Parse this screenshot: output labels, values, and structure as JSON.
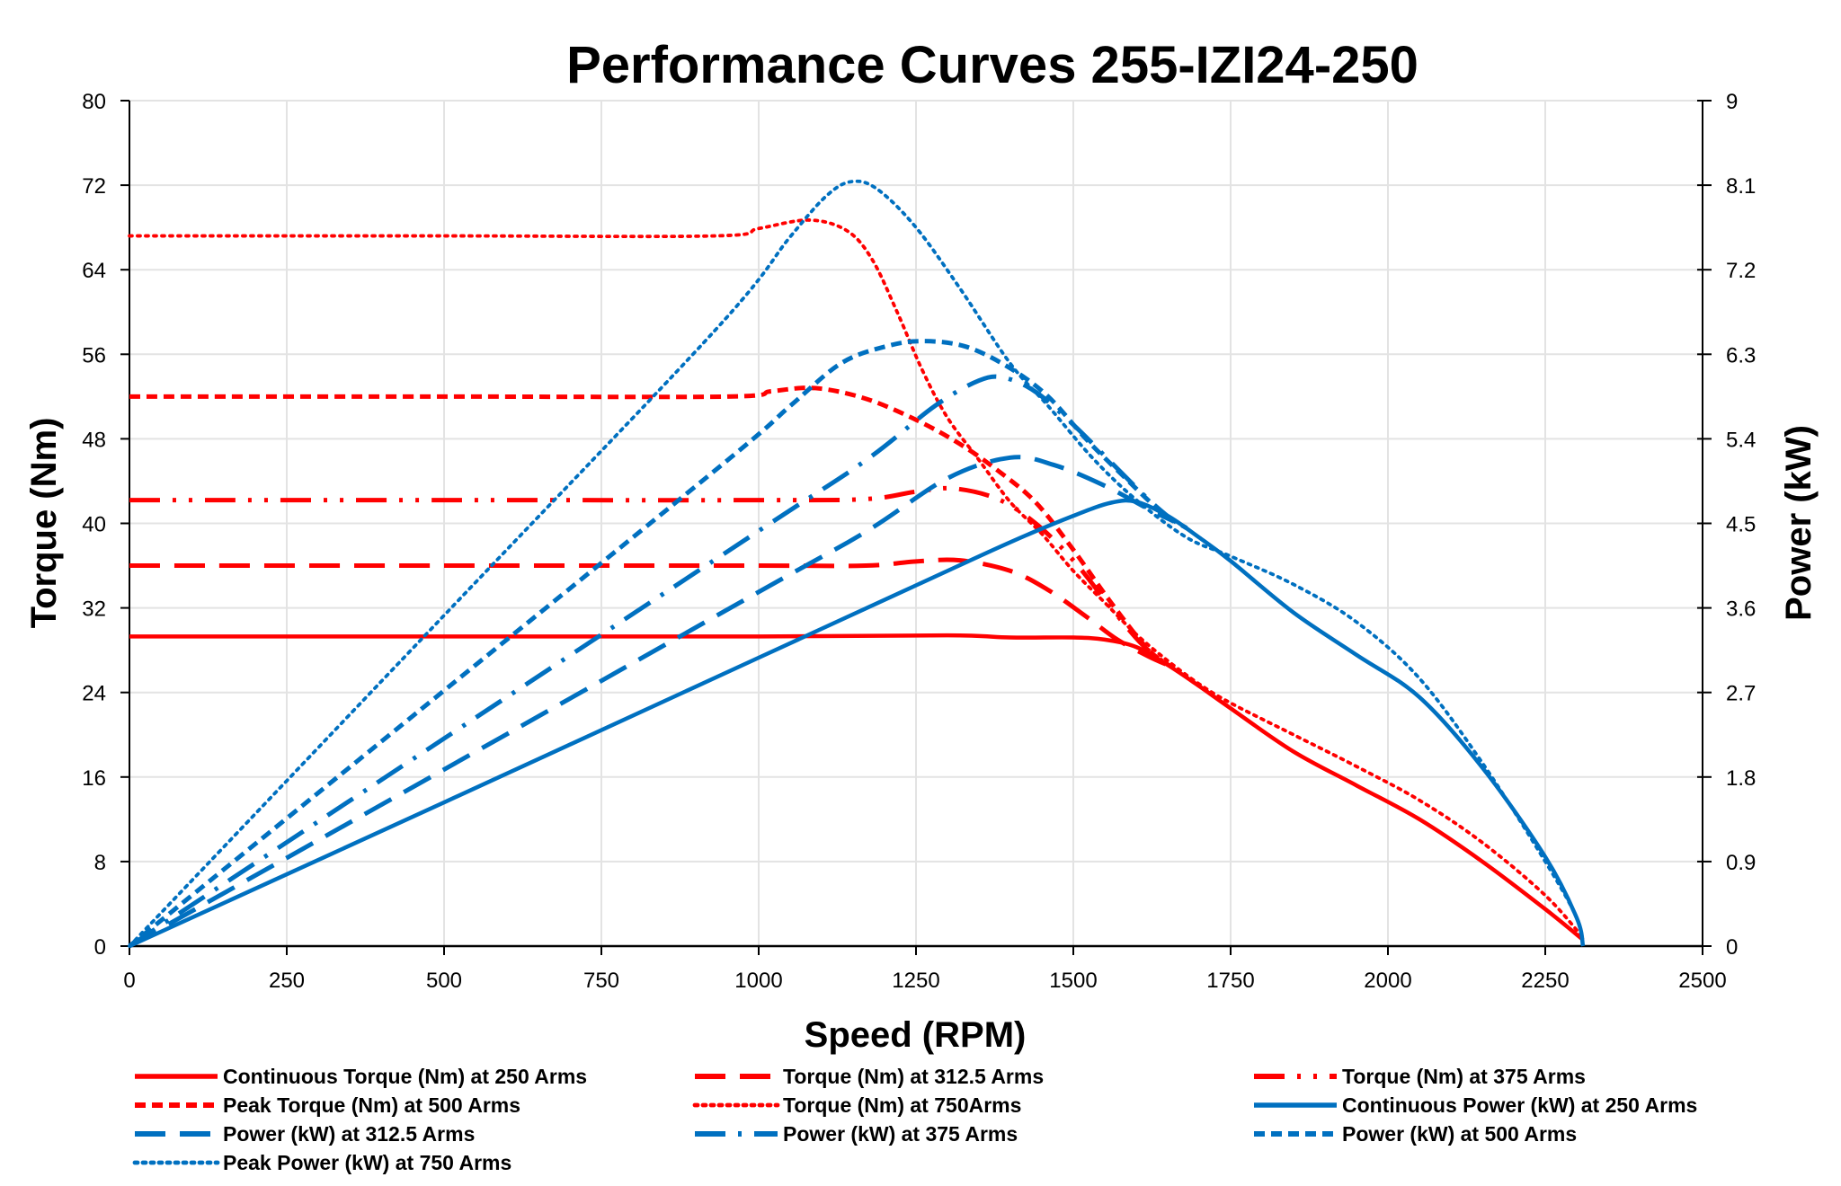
{
  "chart_data": {
    "type": "line",
    "title": "Performance Curves 255-IZI24-250",
    "xlabel": "Speed (RPM)",
    "ylabel": "Torque (Nm)",
    "y2label": "Power (kW)",
    "xlim": [
      0,
      2500
    ],
    "ylim": [
      0,
      80
    ],
    "y2lim": [
      0,
      9
    ],
    "xticks": [
      "0",
      "250",
      "500",
      "750",
      "1000",
      "1250",
      "1500",
      "1750",
      "2000",
      "2250",
      "2500"
    ],
    "yticks": [
      "0",
      "8",
      "16",
      "24",
      "32",
      "40",
      "48",
      "56",
      "64",
      "72",
      "80"
    ],
    "y2ticks": [
      "0",
      "0.9",
      "1.8",
      "2.7",
      "3.6",
      "4.5",
      "5.4",
      "6.3",
      "7.2",
      "8.1",
      "9"
    ],
    "grid": true,
    "legend_position": "bottom",
    "colors": {
      "torque": "#ff0000",
      "power": "#0070c0"
    },
    "series": [
      {
        "name": "Continuous Torque (Nm) at 250 Arms",
        "axis": "left",
        "color": "#ff0000",
        "style": "solid",
        "points": [
          [
            0,
            29.3
          ],
          [
            500,
            29.3
          ],
          [
            1000,
            29.3
          ],
          [
            1300,
            29.4
          ],
          [
            1400,
            29.2
          ],
          [
            1500,
            29.2
          ],
          [
            1550,
            29
          ],
          [
            1600,
            28.3
          ],
          [
            1650,
            26.6
          ],
          [
            1700,
            24.6
          ],
          [
            1750,
            22.5
          ],
          [
            1850,
            18.4
          ],
          [
            1950,
            15.2
          ],
          [
            2050,
            12
          ],
          [
            2150,
            8
          ],
          [
            2250,
            3.5
          ],
          [
            2310,
            0.6
          ]
        ]
      },
      {
        "name": "Torque (Nm) at 312.5 Arms",
        "axis": "left",
        "color": "#ff0000",
        "style": "longdash",
        "points": [
          [
            0,
            36
          ],
          [
            500,
            36
          ],
          [
            1000,
            36
          ],
          [
            1170,
            36
          ],
          [
            1250,
            36.4
          ],
          [
            1320,
            36.5
          ],
          [
            1400,
            35.5
          ],
          [
            1460,
            33.7
          ],
          [
            1520,
            31.2
          ],
          [
            1570,
            29
          ],
          [
            1620,
            27.4
          ],
          [
            1650,
            26.6
          ]
        ]
      },
      {
        "name": "Torque (Nm) at 375 Arms",
        "axis": "left",
        "color": "#ff0000",
        "style": "dashdotdot",
        "points": [
          [
            0,
            42.2
          ],
          [
            500,
            42.2
          ],
          [
            1000,
            42.2
          ],
          [
            1170,
            42.3
          ],
          [
            1250,
            43
          ],
          [
            1310,
            43.3
          ],
          [
            1380,
            42.3
          ],
          [
            1440,
            40
          ],
          [
            1500,
            36.5
          ],
          [
            1560,
            32
          ],
          [
            1610,
            28.5
          ],
          [
            1650,
            26.6
          ]
        ]
      },
      {
        "name": "Peak Torque (Nm) at 500 Arms",
        "axis": "left",
        "color": "#ff0000",
        "style": "shortdash",
        "points": [
          [
            0,
            52
          ],
          [
            500,
            52
          ],
          [
            950,
            52
          ],
          [
            1020,
            52.5
          ],
          [
            1090,
            52.8
          ],
          [
            1170,
            51.8
          ],
          [
            1250,
            49.8
          ],
          [
            1320,
            47.5
          ],
          [
            1380,
            45
          ],
          [
            1440,
            42
          ],
          [
            1500,
            37.5
          ],
          [
            1560,
            32.5
          ],
          [
            1620,
            28
          ],
          [
            1660,
            26.3
          ]
        ]
      },
      {
        "name": "Torque (Nm) at 750Arms",
        "axis": "left",
        "color": "#ff0000",
        "style": "dot",
        "points": [
          [
            0,
            67.2
          ],
          [
            500,
            67.2
          ],
          [
            930,
            67.2
          ],
          [
            1000,
            67.9
          ],
          [
            1080,
            68.7
          ],
          [
            1140,
            67.7
          ],
          [
            1180,
            65
          ],
          [
            1220,
            60
          ],
          [
            1260,
            54.5
          ],
          [
            1300,
            50
          ],
          [
            1350,
            46
          ],
          [
            1400,
            42
          ],
          [
            1450,
            39
          ],
          [
            1500,
            35.5
          ],
          [
            1550,
            32.5
          ],
          [
            1600,
            29.5
          ],
          [
            1650,
            27
          ],
          [
            1700,
            24.8
          ],
          [
            1750,
            23
          ],
          [
            1850,
            20
          ],
          [
            1950,
            17
          ],
          [
            2050,
            13.8
          ],
          [
            2150,
            9.8
          ],
          [
            2250,
            4.8
          ],
          [
            2310,
            0.8
          ]
        ]
      },
      {
        "name": "Continuous Power (kW) at 250 Arms",
        "axis": "right",
        "color": "#0070c0",
        "style": "solid",
        "points": [
          [
            0,
            0
          ],
          [
            500,
            1.53
          ],
          [
            1000,
            3.07
          ],
          [
            1250,
            3.84
          ],
          [
            1400,
            4.3
          ],
          [
            1500,
            4.58
          ],
          [
            1560,
            4.72
          ],
          [
            1600,
            4.73
          ],
          [
            1650,
            4.58
          ],
          [
            1700,
            4.35
          ],
          [
            1750,
            4.1
          ],
          [
            1850,
            3.55
          ],
          [
            1950,
            3.1
          ],
          [
            2050,
            2.65
          ],
          [
            2150,
            1.9
          ],
          [
            2250,
            0.95
          ],
          [
            2300,
            0.3
          ],
          [
            2310,
            0
          ]
        ]
      },
      {
        "name": "Power (kW) at 312.5 Arms",
        "axis": "right",
        "color": "#0070c0",
        "style": "longdash",
        "points": [
          [
            0,
            0
          ],
          [
            500,
            1.88
          ],
          [
            1000,
            3.77
          ],
          [
            1170,
            4.41
          ],
          [
            1300,
            4.98
          ],
          [
            1400,
            5.2
          ],
          [
            1470,
            5.12
          ],
          [
            1550,
            4.9
          ],
          [
            1620,
            4.65
          ],
          [
            1660,
            4.52
          ]
        ]
      },
      {
        "name": "Power (kW) at 375 Arms",
        "axis": "right",
        "color": "#0070c0",
        "style": "dashdot",
        "points": [
          [
            0,
            0
          ],
          [
            500,
            2.21
          ],
          [
            1000,
            4.42
          ],
          [
            1170,
            5.17
          ],
          [
            1280,
            5.75
          ],
          [
            1350,
            6.02
          ],
          [
            1390,
            6.05
          ],
          [
            1440,
            5.9
          ],
          [
            1500,
            5.55
          ],
          [
            1560,
            5.15
          ],
          [
            1620,
            4.75
          ],
          [
            1660,
            4.52
          ]
        ]
      },
      {
        "name": "Power (kW) at 500 Arms",
        "axis": "right",
        "color": "#0070c0",
        "style": "shortdash",
        "points": [
          [
            0,
            0
          ],
          [
            500,
            2.72
          ],
          [
            950,
            5.17
          ],
          [
            1050,
            5.75
          ],
          [
            1130,
            6.2
          ],
          [
            1200,
            6.38
          ],
          [
            1260,
            6.44
          ],
          [
            1330,
            6.38
          ],
          [
            1400,
            6.15
          ],
          [
            1460,
            5.85
          ],
          [
            1520,
            5.4
          ],
          [
            1580,
            5.0
          ],
          [
            1640,
            4.62
          ],
          [
            1680,
            4.45
          ]
        ]
      },
      {
        "name": "Peak Power (kW) at 750 Arms",
        "axis": "right",
        "color": "#0070c0",
        "style": "dot",
        "points": [
          [
            0,
            0
          ],
          [
            500,
            3.52
          ],
          [
            930,
            6.55
          ],
          [
            1050,
            7.55
          ],
          [
            1110,
            8.0
          ],
          [
            1150,
            8.14
          ],
          [
            1190,
            8.05
          ],
          [
            1250,
            7.65
          ],
          [
            1320,
            7.0
          ],
          [
            1400,
            6.2
          ],
          [
            1460,
            5.75
          ],
          [
            1530,
            5.2
          ],
          [
            1600,
            4.75
          ],
          [
            1680,
            4.35
          ],
          [
            1750,
            4.15
          ],
          [
            1850,
            3.85
          ],
          [
            1950,
            3.45
          ],
          [
            2050,
            2.85
          ],
          [
            2150,
            1.95
          ],
          [
            2250,
            0.9
          ],
          [
            2300,
            0.3
          ],
          [
            2310,
            0
          ]
        ]
      }
    ]
  }
}
